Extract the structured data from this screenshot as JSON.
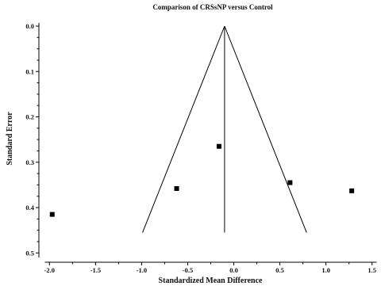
{
  "chart_data": {
    "type": "scatter",
    "subtype": "funnel-plot",
    "title": "Comparison of CRSsNP versus Control",
    "xlabel": "Standardized Mean Difference",
    "ylabel": "Standard Error",
    "xlim": [
      -2.05,
      1.55
    ],
    "ylim": [
      0.0,
      0.51
    ],
    "y_inverted": true,
    "x_ticks": [
      "-2.0",
      "-1.5",
      "-1.0",
      "-0.5",
      "0.0",
      "0.5",
      "1.0",
      "1.5"
    ],
    "x_tick_values": [
      -2.0,
      -1.5,
      -1.0,
      -0.5,
      0.0,
      0.5,
      1.0,
      1.5
    ],
    "y_ticks": [
      "0.0",
      "0.1",
      "0.2",
      "0.3",
      "0.4",
      "0.5"
    ],
    "y_tick_values": [
      0.0,
      0.1,
      0.2,
      0.3,
      0.4,
      0.5
    ],
    "grid": false,
    "points": [
      {
        "x": -1.97,
        "y": 0.415
      },
      {
        "x": -0.62,
        "y": 0.358
      },
      {
        "x": -0.16,
        "y": 0.265
      },
      {
        "x": 0.61,
        "y": 0.345
      },
      {
        "x": 1.28,
        "y": 0.363
      }
    ],
    "pooled_effect": -0.1,
    "funnel": {
      "apex": [
        -0.1,
        0.0
      ],
      "bottom_se": 0.455,
      "bottom_left_x": -0.99,
      "bottom_right_x": 0.79
    },
    "marker": "filled-square",
    "color": "#000000"
  }
}
